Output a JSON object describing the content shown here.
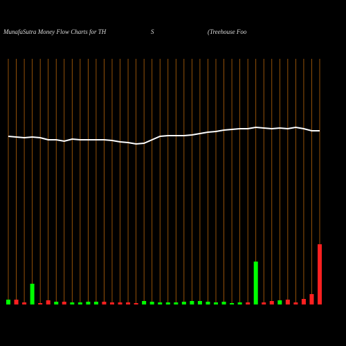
{
  "chart_data": {
    "type": "money-flow",
    "title": [
      "MunafaSutra  Money Flow  Charts for TH",
      "S",
      "(Treehouse   Foo"
    ],
    "categories": [
      null,
      null,
      null,
      null,
      null,
      null,
      null,
      null,
      null,
      null,
      null,
      null,
      null,
      null,
      null,
      null,
      null,
      null,
      null,
      null,
      null,
      null,
      null,
      null,
      null,
      null,
      null,
      null,
      null,
      null,
      null,
      null,
      null,
      null,
      null,
      null,
      null,
      null,
      null,
      null
    ],
    "ylim": [
      0,
      440
    ],
    "grid_color": "#b8650a",
    "line": {
      "color": "#ffffff",
      "values": [
        243,
        242,
        241,
        242,
        241,
        238,
        238,
        236,
        239,
        238,
        238,
        238,
        238,
        237,
        235,
        234,
        232,
        233,
        238,
        243,
        244,
        244,
        244,
        245,
        247,
        249,
        250,
        252,
        253,
        254,
        254,
        256,
        255,
        254,
        255,
        254,
        256,
        254,
        251,
        251
      ]
    },
    "bars": {
      "values": [
        7,
        7,
        3,
        30,
        2,
        6,
        4,
        4,
        3,
        3,
        4,
        4,
        4,
        3,
        3,
        3,
        2,
        5,
        4,
        3,
        3,
        3,
        4,
        5,
        5,
        4,
        3,
        4,
        2,
        3,
        3,
        62,
        3,
        5,
        6,
        7,
        3,
        8,
        15,
        87
      ],
      "colors": [
        "#00ff00",
        "#ff2020",
        "#ff2020",
        "#00ff00",
        "#ff2020",
        "#ff2020",
        "#00ff00",
        "#ff2020",
        "#00ff00",
        "#00ff00",
        "#00ff00",
        "#00ff00",
        "#ff2020",
        "#ff2020",
        "#ff2020",
        "#ff2020",
        "#ff2020",
        "#00ff00",
        "#00ff00",
        "#00ff00",
        "#00ff00",
        "#00ff00",
        "#00ff00",
        "#00ff00",
        "#00ff00",
        "#00ff00",
        "#00ff00",
        "#00ff00",
        "#00ff00",
        "#00ff00",
        "#ff2020",
        "#00ff00",
        "#ff2020",
        "#ff2020",
        "#00ff00",
        "#ff2020",
        "#ff2020",
        "#ff2020",
        "#ff2020",
        "#ff2020"
      ]
    }
  }
}
